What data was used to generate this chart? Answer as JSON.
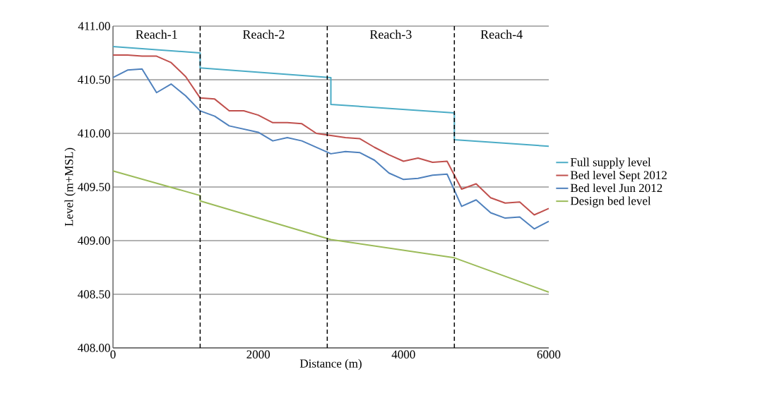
{
  "chart_data": {
    "type": "line",
    "xlabel": "Distance (m)",
    "ylabel": "Level (m+MSL)",
    "xlim": [
      0,
      6000
    ],
    "xticks": [
      0,
      2000,
      4000,
      6000
    ],
    "ylim": [
      408,
      411
    ],
    "yticks": [
      {
        "value": 408,
        "label": "408.00"
      },
      {
        "value": 408.5,
        "label": "408.50"
      },
      {
        "value": 409,
        "label": "409.00"
      },
      {
        "value": 409.5,
        "label": "409.50"
      },
      {
        "value": 410,
        "label": "410.00"
      },
      {
        "value": 410.5,
        "label": "410.50"
      },
      {
        "value": 411,
        "label": "411.00"
      }
    ],
    "grid": "y",
    "legend": "right",
    "marker": "none",
    "line_style": "solid",
    "series": [
      {
        "name": "Full supply level",
        "color": "#4bacc6",
        "x": [
          0,
          1200,
          1200,
          3000,
          3000,
          4700,
          4700,
          6000
        ],
        "values": [
          410.81,
          410.75,
          410.61,
          410.52,
          410.27,
          410.19,
          409.94,
          409.88
        ]
      },
      {
        "name": "Bed level Sept 2012",
        "color": "#c0504d",
        "x": [
          0,
          200,
          400,
          600,
          800,
          1000,
          1200,
          1400,
          1600,
          1800,
          2000,
          2200,
          2400,
          2600,
          2800,
          3000,
          3200,
          3400,
          3600,
          3800,
          4000,
          4200,
          4400,
          4600,
          4800,
          5000,
          5200,
          5400,
          5600,
          5800,
          6000
        ],
        "values": [
          410.73,
          410.73,
          410.72,
          410.72,
          410.66,
          410.53,
          410.33,
          410.32,
          410.21,
          410.21,
          410.17,
          410.1,
          410.1,
          410.09,
          410.0,
          409.98,
          409.96,
          409.95,
          409.87,
          409.8,
          409.74,
          409.77,
          409.73,
          409.74,
          409.48,
          409.53,
          409.4,
          409.35,
          409.36,
          409.24,
          409.3
        ]
      },
      {
        "name": "Bed level Jun 2012",
        "color": "#4f81bd",
        "x": [
          0,
          200,
          400,
          600,
          800,
          1000,
          1200,
          1400,
          1600,
          1800,
          2000,
          2200,
          2400,
          2600,
          2800,
          3000,
          3200,
          3400,
          3600,
          3800,
          4000,
          4200,
          4400,
          4600,
          4800,
          5000,
          5200,
          5400,
          5600,
          5800,
          6000
        ],
        "values": [
          410.52,
          410.59,
          410.6,
          410.38,
          410.46,
          410.35,
          410.21,
          410.16,
          410.07,
          410.04,
          410.01,
          409.93,
          409.96,
          409.93,
          409.87,
          409.81,
          409.83,
          409.82,
          409.75,
          409.63,
          409.57,
          409.58,
          409.61,
          409.62,
          409.32,
          409.38,
          409.26,
          409.21,
          409.22,
          409.11,
          409.18
        ]
      },
      {
        "name": "Design bed level",
        "color": "#9bbb59",
        "x": [
          0,
          1200,
          1200,
          3000,
          4700,
          6000
        ],
        "values": [
          409.65,
          409.42,
          409.37,
          409.01,
          408.84,
          408.52
        ]
      }
    ],
    "ref_lines": [
      {
        "axis": "x",
        "value": 1200,
        "line_style": "dashed",
        "color": "#000000"
      },
      {
        "axis": "x",
        "value": 2950,
        "line_style": "dashed",
        "color": "#000000"
      },
      {
        "axis": "x",
        "value": 4700,
        "line_style": "dashed",
        "color": "#000000"
      }
    ],
    "annotations": [
      "Reach-1",
      "Reach-2",
      "Reach-3",
      "Reach-4"
    ]
  }
}
